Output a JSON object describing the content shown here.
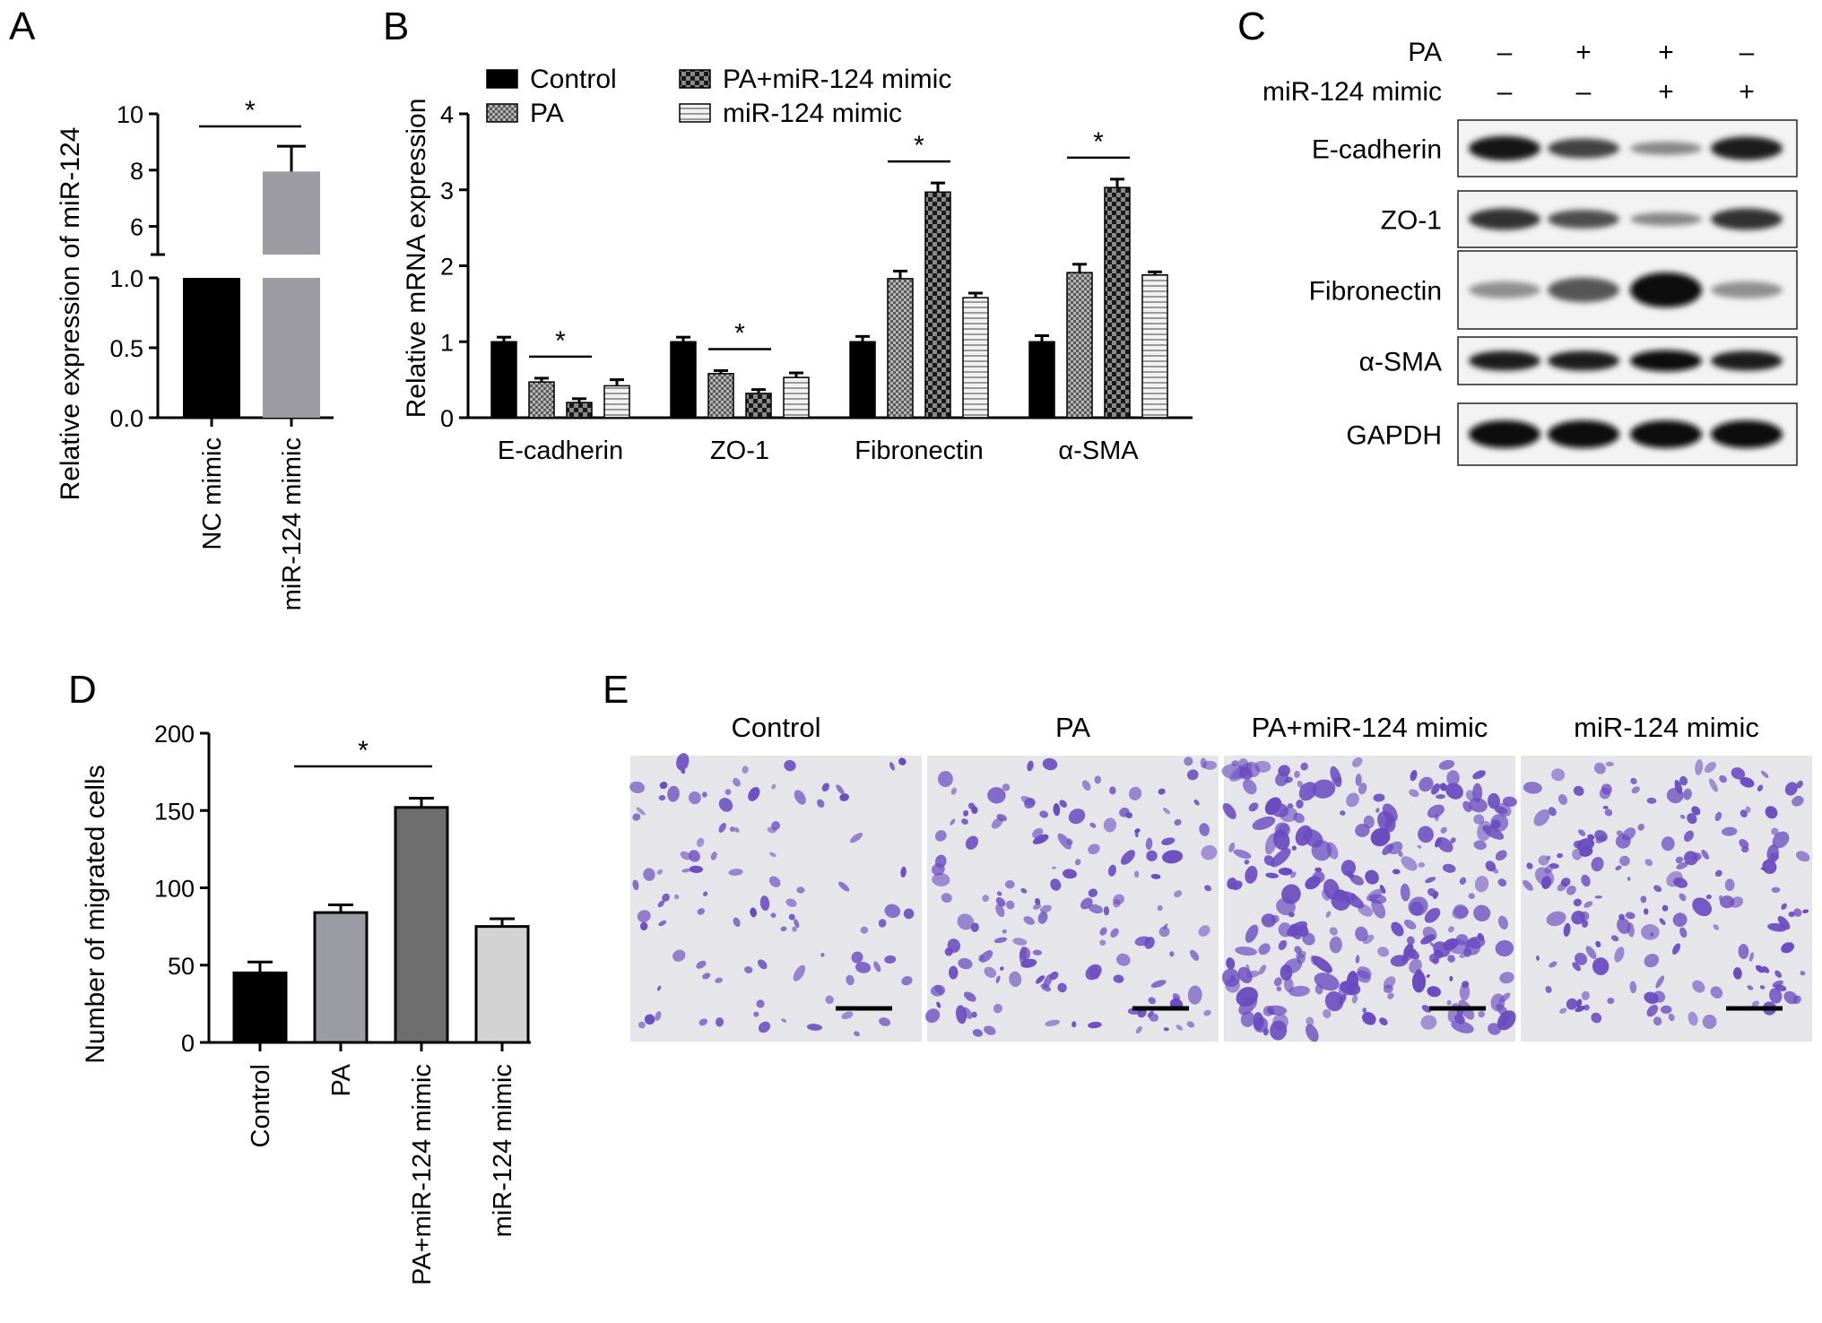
{
  "panels": {
    "A": "A",
    "B": "B",
    "C": "C",
    "D": "D",
    "E": "E"
  },
  "chart_data": [
    {
      "panel": "A",
      "type": "bar",
      "ylabel": "Relative expression of miR-124",
      "categories": [
        "NC mimic",
        "miR-124 mimic"
      ],
      "values": [
        1.0,
        7.95
      ],
      "errors": [
        0,
        0.9
      ],
      "broken_axis": {
        "lower": [
          0,
          1.0
        ],
        "upper": [
          5,
          10
        ]
      },
      "yticks_lower": [
        "0.0",
        "0.5",
        "1.0"
      ],
      "yticks_upper": [
        "6",
        "8",
        "10"
      ],
      "colors": [
        "#000000",
        "#9b9ba1"
      ],
      "significance": [
        {
          "label": "*",
          "between": [
            0,
            1
          ]
        }
      ]
    },
    {
      "panel": "B",
      "type": "bar",
      "ylabel": "Relative mRNA expression",
      "ylim": [
        0,
        4
      ],
      "yticks": [
        "0",
        "1",
        "2",
        "3",
        "4"
      ],
      "categories": [
        "E-cadherin",
        "ZO-1",
        "Fibronectin",
        "α-SMA"
      ],
      "series": [
        {
          "name": "Control",
          "values": [
            1.0,
            1.0,
            1.0,
            1.0
          ],
          "errors": [
            0.06,
            0.06,
            0.07,
            0.08
          ],
          "pattern": "solid"
        },
        {
          "name": "PA",
          "values": [
            0.47,
            0.58,
            1.83,
            1.91
          ],
          "errors": [
            0.05,
            0.04,
            0.1,
            0.11
          ],
          "pattern": "dots"
        },
        {
          "name": "PA+miR-124 mimic",
          "values": [
            0.2,
            0.32,
            2.97,
            3.03
          ],
          "errors": [
            0.05,
            0.05,
            0.12,
            0.11
          ],
          "pattern": "checker"
        },
        {
          "name": "miR-124 mimic",
          "values": [
            0.42,
            0.53,
            1.58,
            1.88
          ],
          "errors": [
            0.08,
            0.06,
            0.06,
            0.04
          ],
          "pattern": "hlines"
        }
      ],
      "legend_position": "top",
      "significance": [
        {
          "category": 0,
          "label": "*",
          "between": [
            1,
            2
          ]
        },
        {
          "category": 1,
          "label": "*",
          "between": [
            1,
            2
          ]
        },
        {
          "category": 2,
          "label": "*",
          "between": [
            1,
            2
          ]
        },
        {
          "category": 3,
          "label": "*",
          "between": [
            1,
            2
          ]
        }
      ]
    },
    {
      "panel": "D",
      "type": "bar",
      "ylabel": "Number of migrated cells",
      "ylim": [
        0,
        200
      ],
      "yticks": [
        "0",
        "50",
        "100",
        "150",
        "200"
      ],
      "categories": [
        "Control",
        "PA",
        "PA+miR-124 mimic",
        "miR-124 mimic"
      ],
      "values": [
        45,
        84,
        152,
        75
      ],
      "errors": [
        7,
        5,
        6,
        5
      ],
      "colors": [
        "#000000",
        "#9b9ba4",
        "#6e6e6e",
        "#d3d3d3"
      ],
      "significance": [
        {
          "label": "*",
          "between": [
            1,
            2
          ]
        }
      ]
    }
  ],
  "western_blot": {
    "row_headers": [
      "PA",
      "miR-124 mimic"
    ],
    "conditions": [
      {
        "PA": "–",
        "miR": "–"
      },
      {
        "PA": "+",
        "miR": "–"
      },
      {
        "PA": "+",
        "miR": "+"
      },
      {
        "PA": "–",
        "miR": "+"
      }
    ],
    "bands": [
      {
        "label": "E-cadherin",
        "intensity": [
          0.95,
          0.7,
          0.35,
          0.9
        ]
      },
      {
        "label": "ZO-1",
        "intensity": [
          0.8,
          0.65,
          0.35,
          0.8
        ]
      },
      {
        "label": "Fibronectin",
        "intensity": [
          0.3,
          0.6,
          1.0,
          0.3
        ]
      },
      {
        "label": "α-SMA",
        "intensity": [
          0.9,
          0.9,
          1.0,
          0.9
        ]
      },
      {
        "label": "GAPDH",
        "intensity": [
          1.0,
          1.0,
          1.0,
          1.0
        ]
      }
    ]
  },
  "micrographs": {
    "titles": [
      "Control",
      "PA",
      "PA+miR-124 mimic",
      "miR-124 mimic"
    ],
    "cell_density": [
      0.25,
      0.5,
      1.0,
      0.6
    ],
    "cell_color": "#6a4bc0",
    "background_color": "#e6e6ea"
  }
}
